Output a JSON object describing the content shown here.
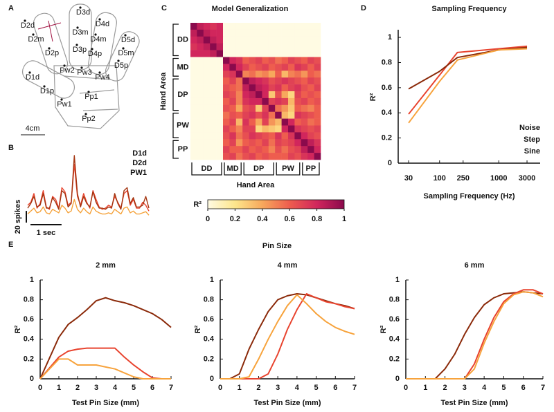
{
  "panel_labels": [
    "A",
    "B",
    "C",
    "D",
    "E"
  ],
  "hand_diagram": {
    "labels": [
      "D3d",
      "D4d",
      "D3m",
      "D4m",
      "D2d",
      "D2m",
      "D3p",
      "D4p",
      "D5d",
      "D5m",
      "D2p",
      "D5p",
      "Pw2",
      "Pw3",
      "Pw4",
      "D1d",
      "D1p",
      "Pp1",
      "Pw1",
      "Pp2"
    ],
    "scale_label": "4cm"
  },
  "group_title": "Pin Size",
  "chart_data": [
    {
      "type": "line",
      "x": [
        0,
        0.1,
        0.2,
        0.3,
        0.4,
        0.5,
        0.6,
        0.7,
        0.8,
        0.9,
        1,
        1.1,
        1.2,
        1.3,
        1.4,
        1.5,
        1.6,
        1.7,
        1.8,
        1.9,
        2,
        2.1,
        2.2,
        2.3,
        2.4,
        2.5,
        2.6,
        2.7,
        2.8,
        2.9,
        3,
        3.1,
        3.2,
        3.3,
        3.4,
        3.5,
        3.6,
        3.7,
        3.8,
        3.9
      ],
      "series": [
        {
          "name": "D1d",
          "color": "#e8432e",
          "values": [
            25,
            30,
            45,
            20,
            28,
            50,
            22,
            18,
            40,
            35,
            20,
            55,
            48,
            25,
            30,
            95,
            40,
            25,
            45,
            30,
            20,
            50,
            35,
            22,
            18,
            20,
            25,
            22,
            40,
            30,
            20,
            45,
            50,
            25,
            35,
            20,
            20,
            30,
            25,
            15
          ]
        },
        {
          "name": "D2d",
          "color": "#a3340f",
          "values": [
            20,
            28,
            40,
            22,
            25,
            45,
            20,
            20,
            38,
            30,
            18,
            50,
            45,
            22,
            28,
            110,
            45,
            22,
            40,
            28,
            22,
            48,
            30,
            20,
            20,
            18,
            22,
            20,
            45,
            28,
            18,
            50,
            55,
            28,
            38,
            22,
            22,
            25,
            40,
            20
          ]
        },
        {
          "name": "PW1",
          "color": "#f5a23a",
          "values": [
            10,
            15,
            20,
            12,
            14,
            22,
            12,
            10,
            18,
            15,
            12,
            25,
            20,
            12,
            15,
            35,
            18,
            12,
            20,
            14,
            10,
            22,
            15,
            12,
            10,
            10,
            12,
            10,
            18,
            14,
            10,
            20,
            22,
            12,
            15,
            10,
            10,
            12,
            14,
            8
          ]
        }
      ],
      "scale_bars": [
        {
          "value": 20,
          "label": "20 spikes"
        },
        {
          "value": 1,
          "label": "1 sec"
        }
      ]
    },
    {
      "type": "heatmap",
      "title": "Model Generalization",
      "x_label": "Hand Area",
      "y_label": "Hand Area",
      "group_labels": [
        "DD",
        "MD",
        "DP",
        "PW",
        "PP"
      ],
      "colormap": [
        "#fffbe3",
        "#fde68c",
        "#f7a85c",
        "#ee5d4e",
        "#d1265c",
        "#8a0a4c"
      ],
      "colorbar_label": "R²",
      "colorbar_lim": [
        0,
        1
      ],
      "colorbar_ticks": [
        0,
        0.2,
        0.4,
        0.6,
        0.8,
        1
      ],
      "z": [
        [
          1,
          0.85,
          0.8,
          0.75,
          0.8,
          0,
          0,
          0,
          0,
          0,
          0,
          0,
          0,
          0,
          0,
          0,
          0,
          0,
          0,
          0
        ],
        [
          0.85,
          1,
          0.85,
          0.8,
          0.8,
          0,
          0,
          0,
          0,
          0,
          0,
          0,
          0,
          0,
          0,
          0,
          0,
          0,
          0,
          0
        ],
        [
          0.8,
          0.85,
          1,
          0.85,
          0.8,
          0,
          0,
          0,
          0,
          0,
          0,
          0,
          0,
          0,
          0,
          0,
          0,
          0,
          0,
          0
        ],
        [
          0.75,
          0.8,
          0.85,
          1,
          0.85,
          0,
          0,
          0,
          0,
          0,
          0,
          0,
          0,
          0,
          0,
          0,
          0,
          0,
          0,
          0
        ],
        [
          0.8,
          0.8,
          0.8,
          0.85,
          1,
          0,
          0,
          0,
          0,
          0,
          0,
          0,
          0,
          0,
          0,
          0,
          0,
          0,
          0,
          0
        ],
        [
          0,
          0,
          0,
          0,
          0,
          1,
          0.8,
          0.75,
          0.6,
          0.65,
          0.7,
          0.6,
          0.65,
          0.55,
          0.6,
          0.7,
          0.65,
          0.6,
          0.7,
          0.65
        ],
        [
          0,
          0,
          0,
          0,
          0,
          0.8,
          1,
          0.8,
          0.7,
          0.6,
          0.65,
          0.7,
          0.6,
          0.65,
          0.7,
          0.6,
          0.75,
          0.7,
          0.6,
          0.7
        ],
        [
          0,
          0,
          0,
          0,
          0,
          0.7,
          0.75,
          1,
          0.5,
          0.55,
          0.45,
          0.5,
          0.4,
          0.6,
          0.35,
          0.5,
          0.55,
          0.45,
          0.6,
          0.55
        ],
        [
          0,
          0,
          0,
          0,
          0,
          0.6,
          0.7,
          0.55,
          1,
          0.85,
          0.8,
          0.75,
          0.65,
          0.7,
          0.75,
          0.7,
          0.65,
          0.6,
          0.7,
          0.65
        ],
        [
          0,
          0,
          0,
          0,
          0,
          0.65,
          0.6,
          0.55,
          0.85,
          1,
          0.85,
          0.8,
          0.7,
          0.75,
          0.6,
          0.7,
          0.75,
          0.65,
          0.6,
          0.7
        ],
        [
          0,
          0,
          0,
          0,
          0,
          0.7,
          0.65,
          0.5,
          0.8,
          0.85,
          1,
          0.8,
          0.3,
          0.65,
          0.4,
          0.25,
          0.7,
          0.6,
          0.65,
          0.6
        ],
        [
          0,
          0,
          0,
          0,
          0,
          0.6,
          0.7,
          0.5,
          0.75,
          0.8,
          0.8,
          1,
          0.7,
          0.75,
          0.7,
          0.35,
          0.65,
          0.7,
          0.6,
          0.65
        ],
        [
          0,
          0,
          0,
          0,
          0,
          0.65,
          0.6,
          0.4,
          0.65,
          0.7,
          0.3,
          0.7,
          1,
          0.55,
          0.45,
          0.3,
          0.6,
          0.55,
          0.5,
          0.6
        ],
        [
          0,
          0,
          0,
          0,
          0,
          0.55,
          0.65,
          0.6,
          0.7,
          0.75,
          0.65,
          0.75,
          0.55,
          1,
          0.35,
          0.25,
          0.75,
          0.7,
          0.65,
          0.6
        ],
        [
          0,
          0,
          0,
          0,
          0,
          0.6,
          0.7,
          0.35,
          0.75,
          0.6,
          0.4,
          0.7,
          0.45,
          0.35,
          1,
          0.8,
          0.6,
          0.65,
          0.55,
          0.6
        ],
        [
          0,
          0,
          0,
          0,
          0,
          0.7,
          0.6,
          0.5,
          0.7,
          0.7,
          0.25,
          0.35,
          0.3,
          0.25,
          0.8,
          1,
          0.75,
          0.7,
          0.65,
          0.7
        ],
        [
          0,
          0,
          0,
          0,
          0,
          0.65,
          0.75,
          0.55,
          0.65,
          0.75,
          0.7,
          0.65,
          0.6,
          0.75,
          0.6,
          0.75,
          1,
          0.8,
          0.7,
          0.65
        ],
        [
          0,
          0,
          0,
          0,
          0,
          0.6,
          0.7,
          0.45,
          0.6,
          0.65,
          0.6,
          0.7,
          0.55,
          0.7,
          0.65,
          0.7,
          0.8,
          1,
          0.85,
          0.75
        ],
        [
          0,
          0,
          0,
          0,
          0,
          0.7,
          0.6,
          0.6,
          0.7,
          0.6,
          0.65,
          0.6,
          0.5,
          0.65,
          0.55,
          0.65,
          0.7,
          0.85,
          1,
          0.8
        ],
        [
          0,
          0,
          0,
          0,
          0,
          0.65,
          0.7,
          0.55,
          0.65,
          0.7,
          0.6,
          0.65,
          0.6,
          0.6,
          0.6,
          0.7,
          0.65,
          0.75,
          0.8,
          1
        ]
      ]
    },
    {
      "type": "line",
      "title": "Sampling Frequency",
      "x_label": "Sampling Frequency (Hz)",
      "y_label": "R²",
      "log_x": true,
      "xlim": [
        20,
        5000
      ],
      "ylim": [
        0,
        1.05
      ],
      "xticks": [
        30,
        100,
        250,
        1000,
        3000
      ],
      "yticks": [
        0,
        0.2,
        0.4,
        0.6,
        0.8,
        1
      ],
      "legend": "lower right",
      "x": [
        30,
        100,
        200,
        1000,
        3000
      ],
      "series": [
        {
          "name": "Noise",
          "color": "#e8432e",
          "values": [
            0.39,
            0.7,
            0.88,
            0.91,
            0.93
          ]
        },
        {
          "name": "Step",
          "color": "#8b2a0a",
          "values": [
            0.59,
            0.73,
            0.84,
            0.9,
            0.92
          ]
        },
        {
          "name": "Sine",
          "color": "#f7a33c",
          "values": [
            0.32,
            0.65,
            0.82,
            0.9,
            0.91
          ]
        }
      ]
    },
    {
      "type": "line",
      "title": "2 mm",
      "x_label": "Test Pin Size (mm)",
      "y_label": "R²",
      "xlim": [
        0,
        7
      ],
      "ylim": [
        0,
        1
      ],
      "xticks": [
        0,
        1,
        2,
        3,
        4,
        5,
        6,
        7
      ],
      "yticks": [
        0,
        0.2,
        0.4,
        0.6,
        0.8,
        1
      ],
      "x": [
        0,
        0.5,
        1,
        1.5,
        2,
        2.5,
        3,
        3.5,
        4,
        4.5,
        5,
        5.5,
        6,
        6.5,
        7
      ],
      "series": [
        {
          "color": "#8b2a0a",
          "values": [
            0,
            0.21,
            0.42,
            0.55,
            0.62,
            0.7,
            0.79,
            0.82,
            0.79,
            0.77,
            0.74,
            0.7,
            0.66,
            0.6,
            0.52
          ]
        },
        {
          "color": "#e8432e",
          "values": [
            0,
            0.11,
            0.22,
            0.28,
            0.3,
            0.31,
            0.31,
            0.31,
            0.31,
            0.22,
            0.14,
            0.07,
            0.01,
            0,
            0
          ]
        },
        {
          "color": "#f7a33c",
          "values": [
            0,
            0.1,
            0.2,
            0.2,
            0.14,
            0.14,
            0.14,
            0.12,
            0.1,
            0.06,
            0.02,
            0,
            0,
            0,
            0
          ]
        }
      ]
    },
    {
      "type": "line",
      "title": "4 mm",
      "x_label": "Test Pin Size (mm)",
      "y_label": "R²",
      "xlim": [
        0,
        7
      ],
      "ylim": [
        0,
        1
      ],
      "xticks": [
        0,
        1,
        2,
        3,
        4,
        5,
        6,
        7
      ],
      "yticks": [
        0,
        0.2,
        0.4,
        0.6,
        0.8,
        1
      ],
      "x": [
        0,
        0.5,
        1,
        1.5,
        2,
        2.5,
        3,
        3.5,
        4,
        4.5,
        5,
        5.5,
        6,
        6.5,
        7
      ],
      "series": [
        {
          "color": "#8b2a0a",
          "values": [
            0,
            0,
            0.05,
            0.3,
            0.5,
            0.68,
            0.8,
            0.84,
            0.86,
            0.85,
            0.82,
            0.79,
            0.76,
            0.74,
            0.71
          ]
        },
        {
          "color": "#e8432e",
          "values": [
            0,
            0,
            0,
            0,
            0,
            0.05,
            0.25,
            0.5,
            0.7,
            0.86,
            0.82,
            0.78,
            0.76,
            0.73,
            0.71
          ]
        },
        {
          "color": "#f7a33c",
          "values": [
            0,
            0,
            0,
            0.02,
            0.2,
            0.4,
            0.58,
            0.74,
            0.85,
            0.76,
            0.66,
            0.58,
            0.52,
            0.48,
            0.45
          ]
        }
      ]
    },
    {
      "type": "line",
      "title": "6 mm",
      "x_label": "Test Pin Size (mm)",
      "y_label": "R²",
      "xlim": [
        0,
        7
      ],
      "ylim": [
        0,
        1
      ],
      "xticks": [
        0,
        1,
        2,
        3,
        4,
        5,
        6,
        7
      ],
      "yticks": [
        0,
        0.2,
        0.4,
        0.6,
        0.8,
        1
      ],
      "x": [
        0,
        0.5,
        1,
        1.5,
        2,
        2.5,
        3,
        3.5,
        4,
        4.5,
        5,
        5.5,
        6,
        6.5,
        7
      ],
      "series": [
        {
          "color": "#8b2a0a",
          "values": [
            0,
            0,
            0,
            0,
            0.1,
            0.25,
            0.45,
            0.62,
            0.75,
            0.82,
            0.86,
            0.87,
            0.88,
            0.87,
            0.86
          ]
        },
        {
          "color": "#e8432e",
          "values": [
            0,
            0,
            0,
            0,
            0,
            0,
            0,
            0.15,
            0.4,
            0.62,
            0.78,
            0.86,
            0.9,
            0.9,
            0.86
          ]
        },
        {
          "color": "#f7a33c",
          "values": [
            0,
            0,
            0,
            0,
            0,
            0,
            0,
            0.1,
            0.36,
            0.58,
            0.76,
            0.85,
            0.88,
            0.87,
            0.83
          ]
        }
      ]
    }
  ]
}
